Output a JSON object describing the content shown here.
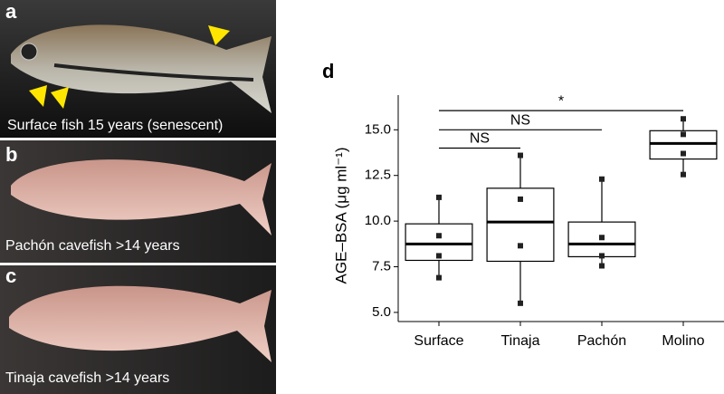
{
  "panels": [
    {
      "letter": "a",
      "caption": "Surface fish 15 years (senescent)"
    },
    {
      "letter": "b",
      "caption": "Pachón cavefish >14 years"
    },
    {
      "letter": "c",
      "caption": "Tinaja cavefish >14 years"
    }
  ],
  "chart_data": {
    "type": "box",
    "panel": "d",
    "ylabel": "AGE–BSA (μg ml⁻¹)",
    "categories": [
      "Surface",
      "Tinaja",
      "Pachón",
      "Molino"
    ],
    "boxes": [
      {
        "low": 6.9,
        "q1": 7.85,
        "median": 8.75,
        "q3": 9.85,
        "high": 11.3,
        "points": [
          11.3,
          9.2,
          8.1,
          6.9
        ]
      },
      {
        "low": 5.5,
        "q1": 7.8,
        "median": 9.95,
        "q3": 11.8,
        "high": 13.6,
        "points": [
          13.6,
          11.2,
          8.65,
          5.5
        ]
      },
      {
        "low": 7.55,
        "q1": 8.05,
        "median": 8.75,
        "q3": 9.95,
        "high": 12.3,
        "points": [
          12.3,
          9.1,
          8.1,
          7.55
        ]
      },
      {
        "low": 12.55,
        "q1": 13.4,
        "median": 14.25,
        "q3": 14.95,
        "high": 15.6,
        "points": [
          15.6,
          14.75,
          13.7,
          12.55
        ]
      }
    ],
    "comparisons": [
      {
        "between": [
          "Surface",
          "Tinaja"
        ],
        "y": 14.0,
        "label": "NS"
      },
      {
        "between": [
          "Surface",
          "Pachón"
        ],
        "y": 15.0,
        "label": "NS"
      },
      {
        "between": [
          "Surface",
          "Molino"
        ],
        "y": 16.05,
        "label": "*"
      }
    ],
    "ylim": [
      4.5,
      16.9
    ],
    "yticks": [
      {
        "value": 5,
        "label": "5.0"
      },
      {
        "value": 7.5,
        "label": "7.5"
      },
      {
        "value": 10,
        "label": "10.0"
      },
      {
        "value": 12.5,
        "label": "12.5"
      },
      {
        "value": 15,
        "label": "15.0"
      }
    ],
    "color": "#ffffff"
  }
}
